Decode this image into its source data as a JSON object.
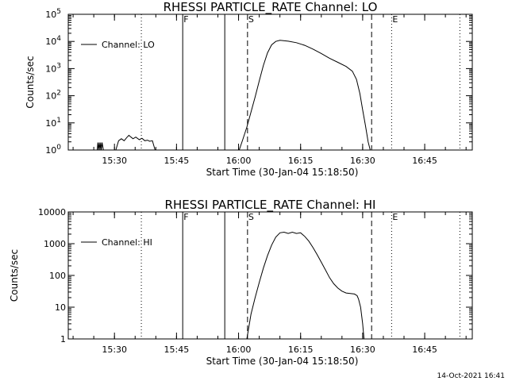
{
  "footer_date": "14-Oct-2021 16:41",
  "chart_data": [
    {
      "type": "line",
      "title": "RHESSI PARTICLE_RATE Channel: LO",
      "xlabel": "Start Time (30-Jan-04 15:18:50)",
      "ylabel": "Counts/sec",
      "yscale": "log",
      "xlim": [
        "15:18:50",
        "16:56:30"
      ],
      "ylim": [
        1,
        100000
      ],
      "xticks": [
        "15:30",
        "15:45",
        "16:00",
        "16:15",
        "16:30",
        "16:45"
      ],
      "yticks": [
        {
          "value": 1,
          "base": "10",
          "exp": "0"
        },
        {
          "value": 10,
          "base": "10",
          "exp": "1"
        },
        {
          "value": 100,
          "base": "10",
          "exp": "2"
        },
        {
          "value": 1000,
          "base": "10",
          "exp": "3"
        },
        {
          "value": 10000,
          "base": "10",
          "exp": "4"
        },
        {
          "value": 100000,
          "base": "10",
          "exp": "5"
        }
      ],
      "legend": {
        "label": "Channel: LO",
        "position": "top-left"
      },
      "markers": [
        {
          "label": "F",
          "time": "15:46:30",
          "style": "solid"
        },
        {
          "label": "S",
          "time": "16:02:10",
          "style": "dashed"
        },
        {
          "label": "E",
          "time": "16:37:00",
          "style": "dotted"
        }
      ],
      "vlines": [
        {
          "time": "15:36:30",
          "style": "dotted"
        },
        {
          "time": "15:46:30",
          "style": "solid"
        },
        {
          "time": "15:56:40",
          "style": "solid"
        },
        {
          "time": "16:02:10",
          "style": "dashed"
        },
        {
          "time": "16:32:10",
          "style": "dashed"
        },
        {
          "time": "16:37:00",
          "style": "dotted"
        },
        {
          "time": "16:53:30",
          "style": "dotted"
        }
      ],
      "series": [
        {
          "points": [
            [
              "15:25:50",
              1
            ],
            [
              "15:26:00",
              1.9
            ],
            [
              "15:26:10",
              1
            ],
            [
              "15:26:20",
              1.9
            ],
            [
              "15:26:30",
              1
            ],
            [
              "15:26:40",
              1.9
            ],
            [
              "15:26:50",
              1
            ],
            [
              "15:27:00",
              1.9
            ],
            [
              "15:27:20",
              1
            ],
            [
              "15:30:20",
              1
            ],
            [
              "15:31:00",
              2.2
            ],
            [
              "15:31:40",
              2.6
            ],
            [
              "15:32:20",
              2.2
            ],
            [
              "15:33:00",
              2.9
            ],
            [
              "15:33:30",
              3.5
            ],
            [
              "15:34:00",
              3.0
            ],
            [
              "15:34:30",
              2.6
            ],
            [
              "15:35:10",
              3.0
            ],
            [
              "15:36:00",
              2.4
            ],
            [
              "15:36:40",
              2.7
            ],
            [
              "15:37:20",
              2.2
            ],
            [
              "15:38:00",
              2.3
            ],
            [
              "15:38:30",
              2.1
            ],
            [
              "15:39:10",
              2.2
            ],
            [
              "15:39:50",
              1
            ]
          ]
        },
        {
          "points": [
            [
              "16:00:10",
              1
            ],
            [
              "16:01:00",
              2.4
            ],
            [
              "16:02:00",
              7
            ],
            [
              "16:03:00",
              25
            ],
            [
              "16:04:00",
              90
            ],
            [
              "16:05:00",
              350
            ],
            [
              "16:06:00",
              1300
            ],
            [
              "16:07:00",
              3800
            ],
            [
              "16:08:00",
              7500
            ],
            [
              "16:09:00",
              10000
            ],
            [
              "16:10:00",
              11000
            ],
            [
              "16:12:00",
              10200
            ],
            [
              "16:14:00",
              9000
            ],
            [
              "16:16:00",
              7200
            ],
            [
              "16:18:00",
              5200
            ],
            [
              "16:20:00",
              3600
            ],
            [
              "16:22:00",
              2400
            ],
            [
              "16:24:00",
              1700
            ],
            [
              "16:26:00",
              1200
            ],
            [
              "16:27:30",
              800
            ],
            [
              "16:28:30",
              400
            ],
            [
              "16:29:20",
              120
            ],
            [
              "16:30:00",
              30
            ],
            [
              "16:30:40",
              8
            ],
            [
              "16:31:20",
              2
            ],
            [
              "16:31:50",
              1
            ]
          ]
        }
      ]
    },
    {
      "type": "line",
      "title": "RHESSI PARTICLE_RATE Channel: HI",
      "xlabel": "Start Time (30-Jan-04 15:18:50)",
      "ylabel": "Counts/sec",
      "yscale": "log",
      "xlim": [
        "15:18:50",
        "16:56:30"
      ],
      "ylim": [
        1,
        10000
      ],
      "xticks": [
        "15:30",
        "15:45",
        "16:00",
        "16:15",
        "16:30",
        "16:45"
      ],
      "yticks": [
        {
          "value": 1,
          "label": "1"
        },
        {
          "value": 10,
          "label": "10"
        },
        {
          "value": 100,
          "label": "100"
        },
        {
          "value": 1000,
          "label": "1000"
        },
        {
          "value": 10000,
          "label": "10000"
        }
      ],
      "legend": {
        "label": "Channel: HI",
        "position": "top-left"
      },
      "markers": [
        {
          "label": "F",
          "time": "15:46:30",
          "style": "solid"
        },
        {
          "label": "S",
          "time": "16:02:10",
          "style": "dashed"
        },
        {
          "label": "E",
          "time": "16:37:00",
          "style": "dotted"
        }
      ],
      "vlines": [
        {
          "time": "15:36:30",
          "style": "dotted"
        },
        {
          "time": "15:46:30",
          "style": "solid"
        },
        {
          "time": "15:56:40",
          "style": "solid"
        },
        {
          "time": "16:02:10",
          "style": "dashed"
        },
        {
          "time": "16:32:10",
          "style": "dashed"
        },
        {
          "time": "16:37:00",
          "style": "dotted"
        },
        {
          "time": "16:53:30",
          "style": "dotted"
        }
      ],
      "series": [
        {
          "points": [
            [
              "16:02:00",
              1
            ],
            [
              "16:03:00",
              6
            ],
            [
              "16:04:00",
              20
            ],
            [
              "16:05:00",
              60
            ],
            [
              "16:06:00",
              170
            ],
            [
              "16:07:00",
              420
            ],
            [
              "16:08:00",
              900
            ],
            [
              "16:09:00",
              1600
            ],
            [
              "16:10:00",
              2200
            ],
            [
              "16:11:00",
              2300
            ],
            [
              "16:12:00",
              2100
            ],
            [
              "16:13:00",
              2300
            ],
            [
              "16:14:00",
              2100
            ],
            [
              "16:15:00",
              2200
            ],
            [
              "16:16:00",
              1700
            ],
            [
              "16:17:00",
              1200
            ],
            [
              "16:18:00",
              750
            ],
            [
              "16:19:00",
              450
            ],
            [
              "16:20:00",
              260
            ],
            [
              "16:21:00",
              150
            ],
            [
              "16:22:00",
              85
            ],
            [
              "16:23:00",
              55
            ],
            [
              "16:24:00",
              40
            ],
            [
              "16:25:00",
              32
            ],
            [
              "16:26:00",
              28
            ],
            [
              "16:27:00",
              27
            ],
            [
              "16:28:00",
              26
            ],
            [
              "16:28:40",
              23
            ],
            [
              "16:29:00",
              18
            ],
            [
              "16:29:30",
              10
            ],
            [
              "16:30:00",
              3
            ],
            [
              "16:30:20",
              1
            ]
          ]
        }
      ]
    }
  ]
}
